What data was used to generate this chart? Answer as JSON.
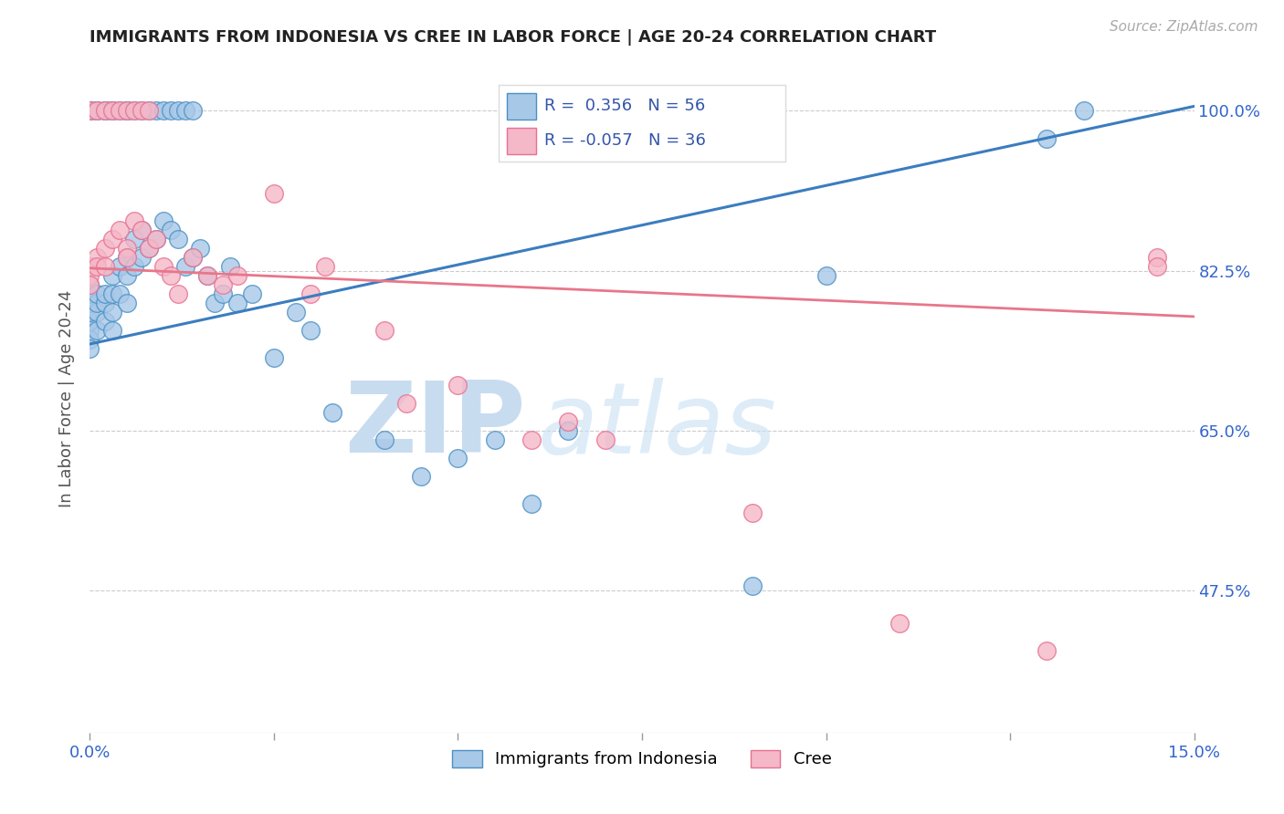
{
  "title": "IMMIGRANTS FROM INDONESIA VS CREE IN LABOR FORCE | AGE 20-24 CORRELATION CHART",
  "source": "Source: ZipAtlas.com",
  "ylabel": "In Labor Force | Age 20-24",
  "ytick_labels": [
    "100.0%",
    "82.5%",
    "65.0%",
    "47.5%"
  ],
  "ytick_values": [
    1.0,
    0.825,
    0.65,
    0.475
  ],
  "xlim": [
    0.0,
    0.15
  ],
  "ylim": [
    0.32,
    1.05
  ],
  "legend_r_blue": " 0.356",
  "legend_n_blue": "56",
  "legend_r_pink": "-0.057",
  "legend_n_pink": "36",
  "color_blue_fill": "#A8C8E8",
  "color_pink_fill": "#F4B8C8",
  "color_blue_edge": "#4A90C4",
  "color_pink_edge": "#E87090",
  "color_blue_line": "#3B7DBF",
  "color_pink_line": "#E8768A",
  "blue_line_x": [
    0.0,
    0.15
  ],
  "blue_line_y": [
    0.745,
    1.005
  ],
  "pink_line_x": [
    0.0,
    0.15
  ],
  "pink_line_y": [
    0.828,
    0.775
  ],
  "blue_x": [
    0.0,
    0.0,
    0.0,
    0.0,
    0.0,
    0.0,
    0.0,
    0.0,
    0.001,
    0.001,
    0.001,
    0.001,
    0.002,
    0.002,
    0.002,
    0.003,
    0.003,
    0.003,
    0.003,
    0.004,
    0.004,
    0.005,
    0.005,
    0.005,
    0.006,
    0.006,
    0.007,
    0.007,
    0.008,
    0.009,
    0.01,
    0.011,
    0.012,
    0.013,
    0.014,
    0.015,
    0.016,
    0.017,
    0.018,
    0.019,
    0.02,
    0.022,
    0.025,
    0.028,
    0.03,
    0.033,
    0.04,
    0.045,
    0.05,
    0.055,
    0.06,
    0.065,
    0.09,
    0.1,
    0.13,
    0.135
  ],
  "blue_y": [
    0.76,
    0.77,
    0.78,
    0.79,
    0.8,
    0.81,
    0.75,
    0.74,
    0.78,
    0.79,
    0.8,
    0.76,
    0.79,
    0.8,
    0.77,
    0.82,
    0.8,
    0.78,
    0.76,
    0.83,
    0.8,
    0.84,
    0.82,
    0.79,
    0.86,
    0.83,
    0.87,
    0.84,
    0.85,
    0.86,
    0.88,
    0.87,
    0.86,
    0.83,
    0.84,
    0.85,
    0.82,
    0.79,
    0.8,
    0.83,
    0.79,
    0.8,
    0.73,
    0.78,
    0.76,
    0.67,
    0.64,
    0.6,
    0.62,
    0.64,
    0.57,
    0.65,
    0.48,
    0.82,
    0.97,
    1.0
  ],
  "blue_top_x": [
    0.0,
    0.0,
    0.0,
    0.001,
    0.001,
    0.002,
    0.002,
    0.003,
    0.003,
    0.004,
    0.005,
    0.005,
    0.006,
    0.007,
    0.008,
    0.009,
    0.01,
    0.011,
    0.012,
    0.013,
    0.014,
    0.075
  ],
  "blue_top_y": [
    1.0,
    1.0,
    1.0,
    1.0,
    1.0,
    1.0,
    1.0,
    1.0,
    1.0,
    1.0,
    1.0,
    1.0,
    1.0,
    1.0,
    1.0,
    1.0,
    1.0,
    1.0,
    1.0,
    1.0,
    1.0,
    1.0
  ],
  "pink_x": [
    0.0,
    0.0,
    0.0,
    0.001,
    0.001,
    0.002,
    0.002,
    0.003,
    0.004,
    0.005,
    0.005,
    0.006,
    0.007,
    0.008,
    0.009,
    0.01,
    0.011,
    0.012,
    0.014,
    0.016,
    0.018,
    0.02,
    0.025,
    0.03,
    0.032,
    0.04,
    0.043,
    0.05,
    0.06,
    0.065,
    0.07,
    0.09,
    0.11,
    0.13,
    0.145,
    0.145
  ],
  "pink_y": [
    0.83,
    0.82,
    0.81,
    0.84,
    0.83,
    0.85,
    0.83,
    0.86,
    0.87,
    0.85,
    0.84,
    0.88,
    0.87,
    0.85,
    0.86,
    0.83,
    0.82,
    0.8,
    0.84,
    0.82,
    0.81,
    0.82,
    0.91,
    0.8,
    0.83,
    0.76,
    0.68,
    0.7,
    0.64,
    0.66,
    0.64,
    0.56,
    0.44,
    0.41,
    0.84,
    0.83
  ],
  "pink_top_x": [
    0.0,
    0.001,
    0.002,
    0.003,
    0.004,
    0.005,
    0.006,
    0.007,
    0.008
  ],
  "pink_top_y": [
    1.0,
    1.0,
    1.0,
    1.0,
    1.0,
    1.0,
    1.0,
    1.0,
    1.0
  ]
}
